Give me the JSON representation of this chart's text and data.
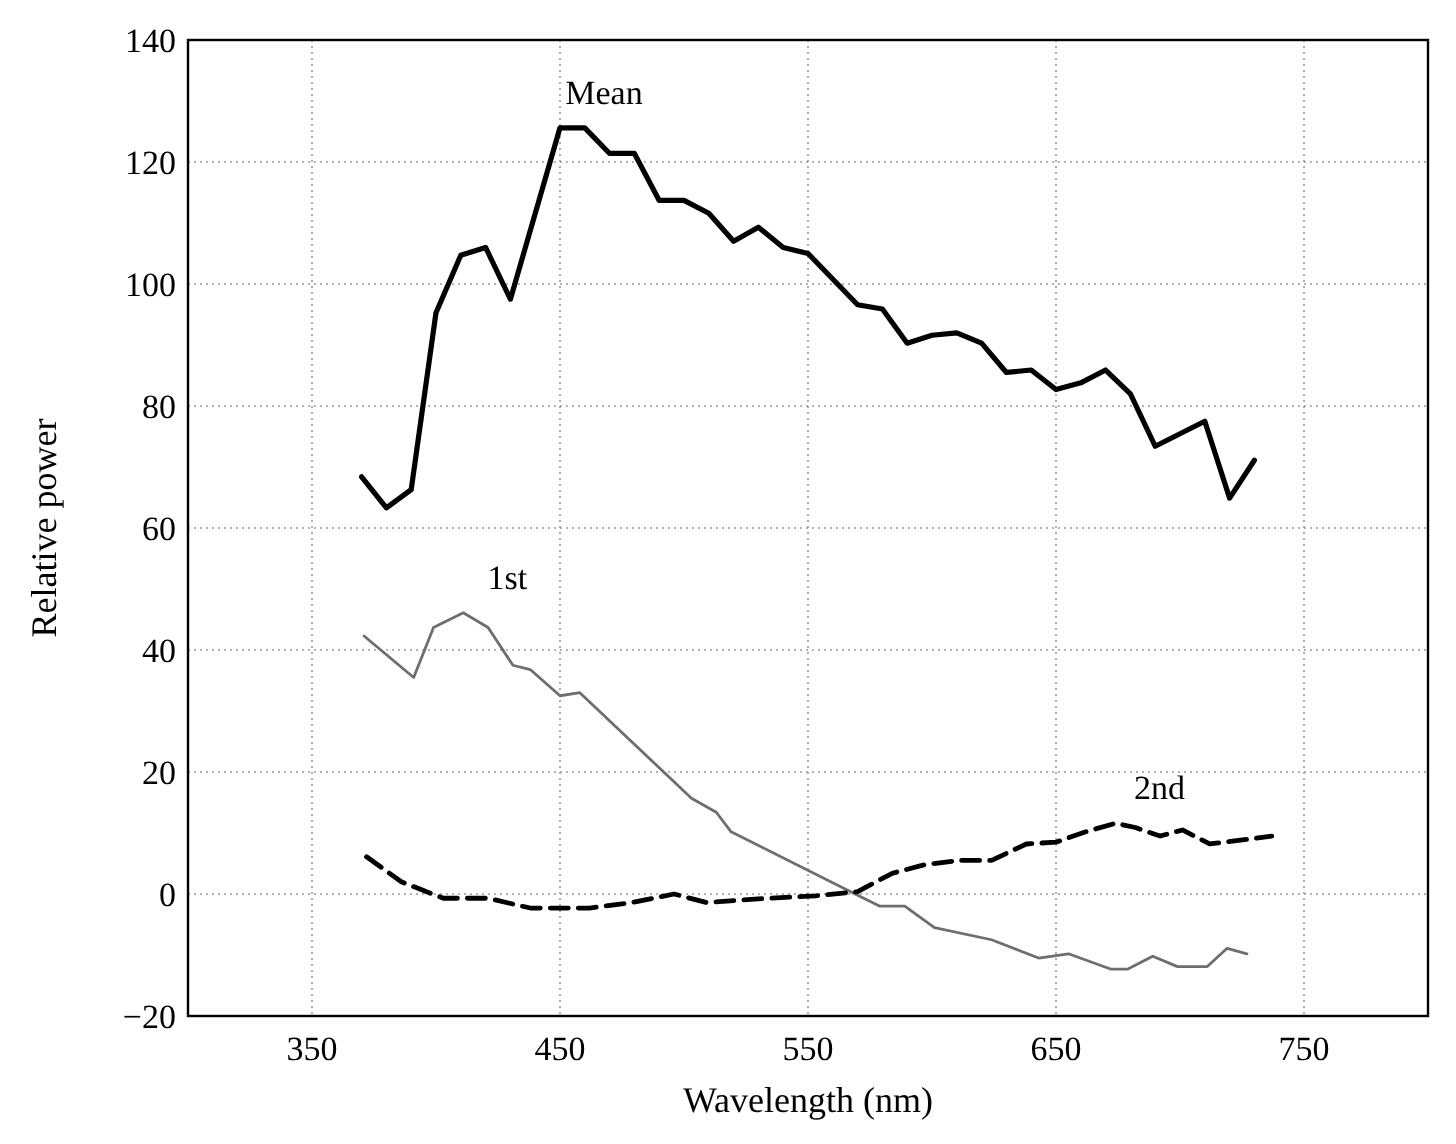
{
  "chart_data": {
    "type": "line",
    "xlabel": "Wavelength (nm)",
    "ylabel": "Relative power",
    "xlim": [
      300,
      800
    ],
    "xticks": [
      350,
      450,
      550,
      650,
      750
    ],
    "ylim": [
      -20,
      140
    ],
    "yticks": [
      -20,
      0,
      20,
      40,
      60,
      80,
      100,
      120,
      140
    ],
    "grid": true,
    "marker": "none",
    "series": [
      {
        "name": "Mean",
        "color": "#000000",
        "line_style": "solid",
        "x": [
          370,
          380,
          390,
          400,
          410,
          420,
          430,
          450,
          460,
          470,
          480,
          490,
          500,
          510,
          520,
          530,
          540,
          550,
          570,
          580,
          590,
          600,
          610,
          620,
          630,
          640,
          650,
          660,
          670,
          680,
          690,
          710,
          720,
          730
        ],
        "values": [
          68.4,
          63.3,
          66.3,
          95.3,
          104.7,
          106,
          97.5,
          125.6,
          125.6,
          121.4,
          121.4,
          113.7,
          113.7,
          111.6,
          107,
          109.3,
          106,
          105,
          96.6,
          95.9,
          90.3,
          91.6,
          92,
          90.3,
          85.5,
          85.9,
          82.7,
          83.8,
          85.9,
          82,
          73.4,
          77.5,
          64.9,
          71.1
        ]
      },
      {
        "name": "1st",
        "color": "#6e6e6e",
        "line_style": "solid",
        "x": [
          371,
          391,
          399,
          411,
          421,
          431,
          438,
          450,
          458,
          503,
          513,
          519,
          569,
          579,
          589,
          601,
          624,
          643,
          655,
          672,
          679,
          689,
          699,
          711,
          719,
          727
        ],
        "values": [
          42.3,
          35.5,
          43.7,
          46.1,
          43.7,
          37.5,
          36.8,
          32.5,
          33,
          15.7,
          13.4,
          10.2,
          0,
          -2,
          -2,
          -5.5,
          -7.5,
          -10.5,
          -9.8,
          -12.3,
          -12.3,
          -10.2,
          -11.9,
          -11.9,
          -8.9,
          -9.8
        ]
      },
      {
        "name": "2nd",
        "color": "#000000",
        "line_style": "dashed",
        "x": [
          372,
          386,
          403,
          421,
          438,
          462,
          479,
          496,
          509,
          530,
          553,
          570,
          584,
          597,
          611,
          624,
          638,
          650,
          662,
          674,
          682,
          692,
          701,
          712,
          726,
          737
        ],
        "values": [
          6.1,
          2,
          -0.7,
          -0.7,
          -2.3,
          -2.3,
          -1.4,
          0,
          -1.4,
          -0.8,
          -0.3,
          0.4,
          3.4,
          4.8,
          5.5,
          5.5,
          8.2,
          8.5,
          10.2,
          11.6,
          10.9,
          9.5,
          10.5,
          8.2,
          8.9,
          9.5
        ]
      }
    ]
  }
}
